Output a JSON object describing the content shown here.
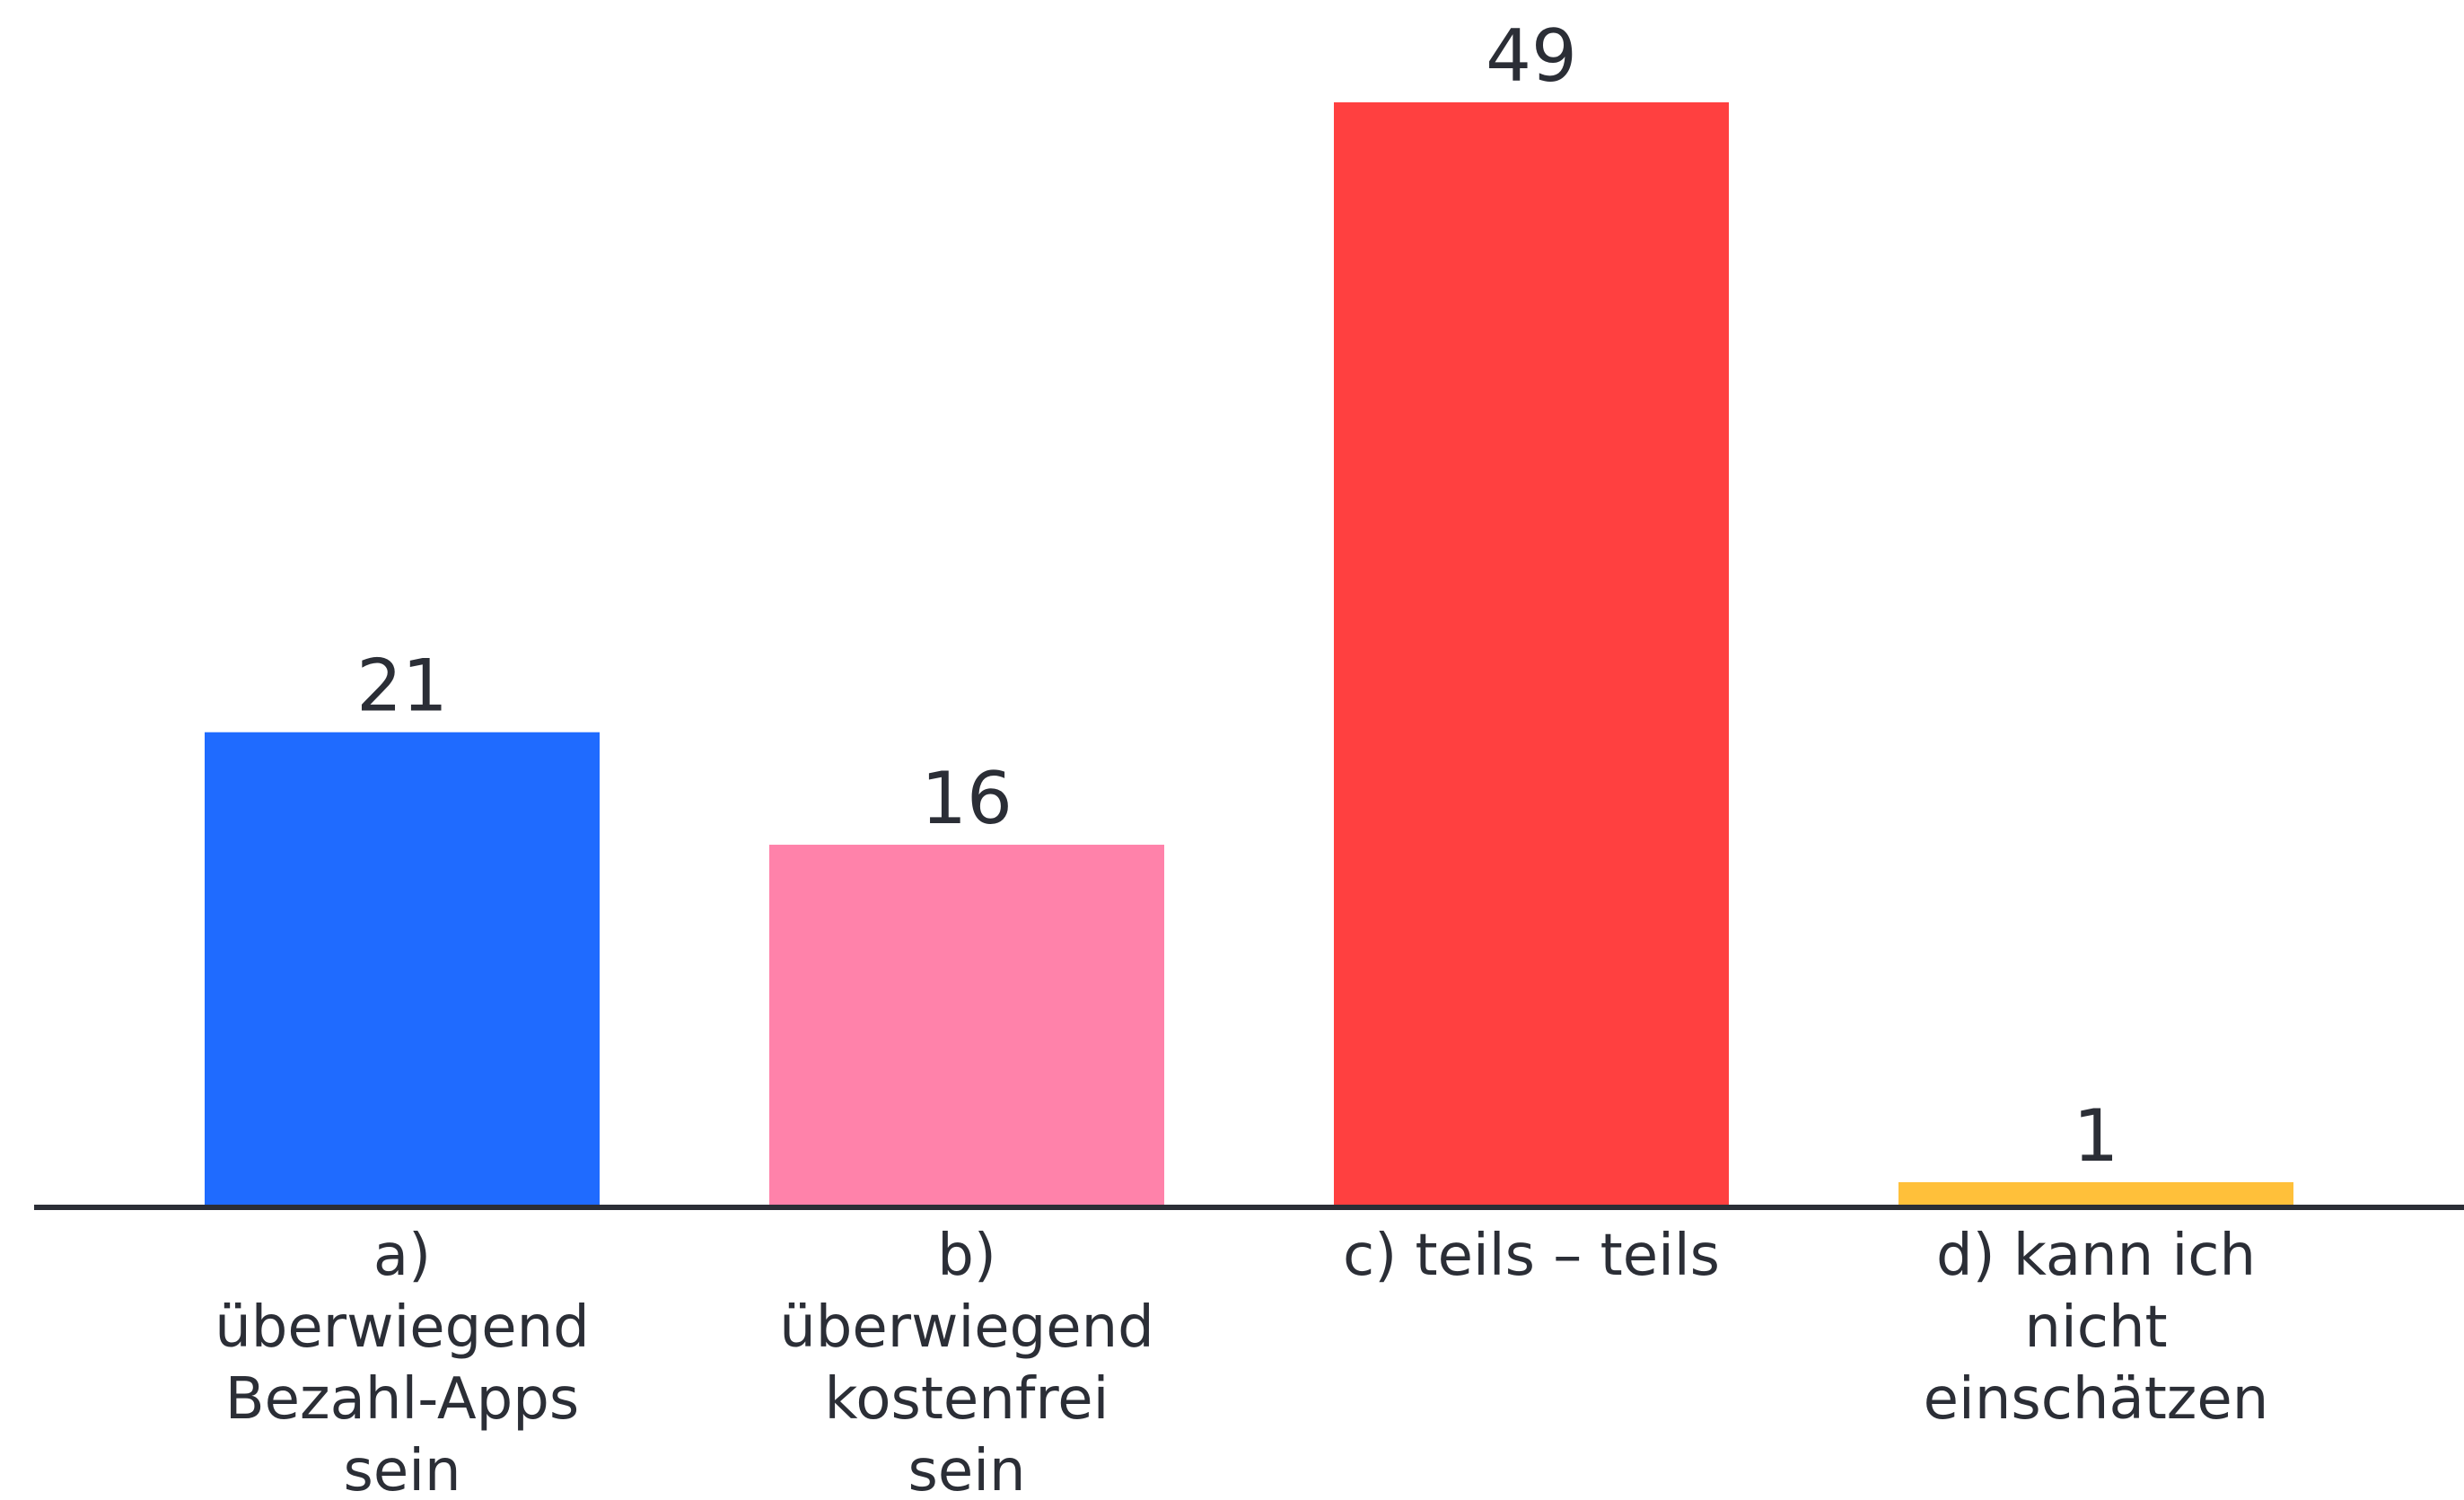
{
  "chart_data": {
    "type": "bar",
    "categories": [
      "a) überwiegend Bezahl-Apps sein",
      "b) überwiegend kostenfrei sein",
      "c) teils – teils",
      "d) kann ich nicht einschätzen"
    ],
    "category_label_lines": [
      [
        "a)",
        "überwiegend",
        "Bezahl-Apps",
        "sein"
      ],
      [
        "b)",
        "überwiegend",
        "kostenfrei",
        "sein"
      ],
      [
        "c) teils – teils"
      ],
      [
        "d) kann ich",
        "nicht",
        "einschätzen"
      ]
    ],
    "values": [
      21,
      16,
      49,
      1
    ],
    "value_labels": [
      "21",
      "16",
      "49",
      "1"
    ],
    "colors": [
      "#1f6bff",
      "#ff82aa",
      "#ff4040",
      "#ffc03a"
    ],
    "title": "",
    "xlabel": "",
    "ylabel": "",
    "ylim": [
      0,
      49
    ],
    "grid": false,
    "legend": "none"
  },
  "colors": {
    "axis": "#2b2e36",
    "text": "#2b2e36",
    "background": "#ffffff"
  }
}
